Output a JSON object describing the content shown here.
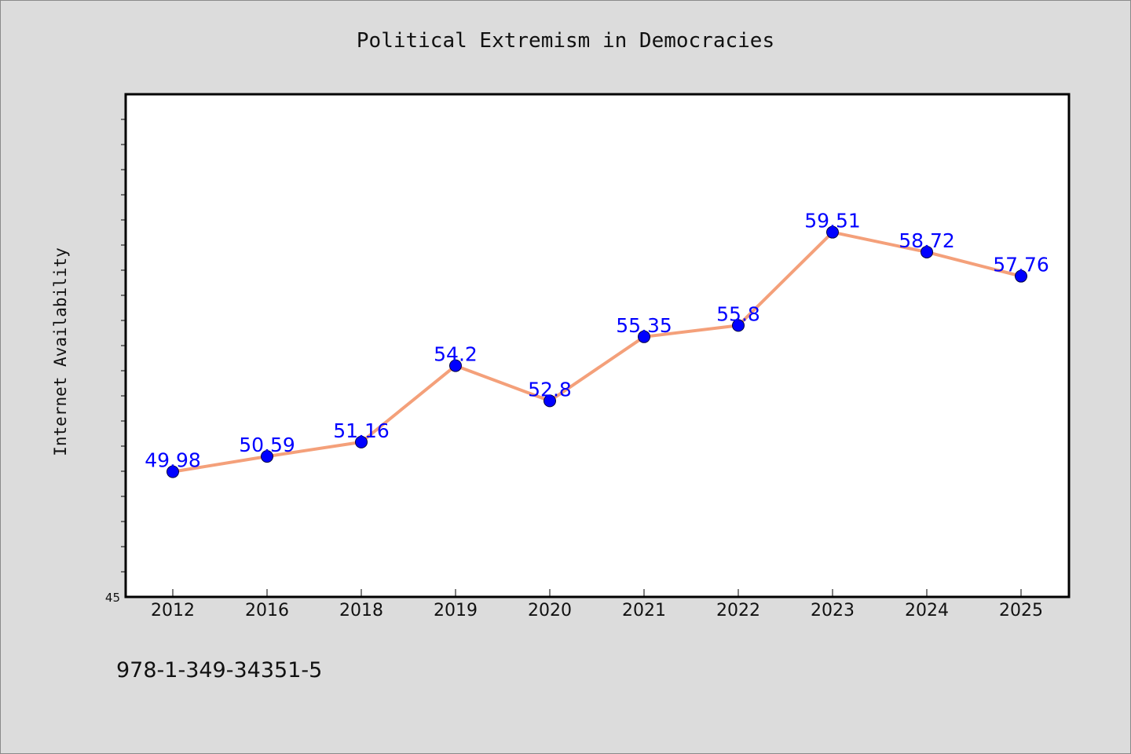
{
  "colors": {
    "background": "#dcdcdc",
    "plot_background": "#ffffff",
    "line": "#f4a07a",
    "marker": "#0000ff",
    "data_label": "#0000ff",
    "text": "#111111"
  },
  "caption": "978-1-349-34351-5",
  "chart_data": {
    "type": "line",
    "title": "Political Extremism in Democracies",
    "xlabel": "",
    "ylabel": "Internet Availability",
    "categories": [
      "2012",
      "2016",
      "2018",
      "2019",
      "2020",
      "2021",
      "2022",
      "2023",
      "2024",
      "2025"
    ],
    "series": [
      {
        "values": [
          49.98,
          50.59,
          51.16,
          54.2,
          52.8,
          55.35,
          55.8,
          59.51,
          58.72,
          57.76
        ],
        "data_labels": [
          "49.98",
          "50.59",
          "51.16",
          "54.2",
          "52.8",
          "55.35",
          "55.8",
          "59.51",
          "58.72",
          "57.76"
        ]
      }
    ],
    "yticks_labeled": [
      "45"
    ],
    "ylim": [
      45,
      65
    ],
    "grid": false,
    "legend": "none"
  }
}
